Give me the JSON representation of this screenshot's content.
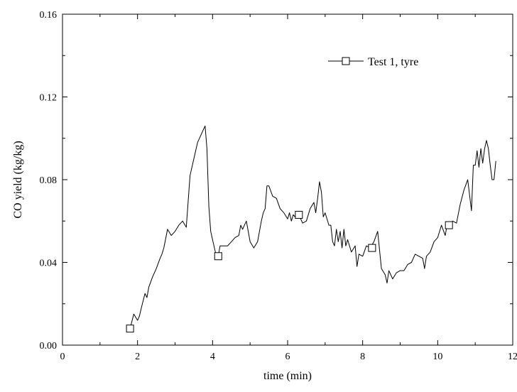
{
  "chart_data": {
    "type": "line",
    "title": "",
    "xlabel": "time (min)",
    "ylabel": "CO yield (kg/kg)",
    "xlim": [
      0,
      12
    ],
    "ylim": [
      0,
      0.16
    ],
    "xticks": [
      0,
      2,
      4,
      6,
      8,
      10,
      12
    ],
    "xtick_labels": [
      "0",
      "2",
      "4",
      "6",
      "8",
      "10",
      "12"
    ],
    "yticks": [
      0,
      0.04,
      0.08,
      0.12,
      0.16
    ],
    "ytick_labels": [
      "0.00",
      "0.04",
      "0.08",
      "0.12",
      "0.16"
    ],
    "grid": false,
    "legend_position": "top-right",
    "series": [
      {
        "name": "Test 1, tyre",
        "color": "#000000",
        "marker": "open-square",
        "x": [
          1.8,
          1.9,
          2.0,
          2.05,
          2.1,
          2.2,
          2.25,
          2.3,
          2.4,
          2.5,
          2.6,
          2.65,
          2.7,
          2.8,
          2.9,
          3.0,
          3.1,
          3.2,
          3.3,
          3.4,
          3.5,
          3.6,
          3.7,
          3.8,
          3.85,
          3.9,
          3.95,
          4.0,
          4.1,
          4.15,
          4.2,
          4.3,
          4.4,
          4.5,
          4.6,
          4.7,
          4.75,
          4.8,
          4.85,
          4.9,
          5.0,
          5.1,
          5.2,
          5.3,
          5.35,
          5.4,
          5.45,
          5.5,
          5.6,
          5.7,
          5.8,
          5.9,
          6.0,
          6.05,
          6.1,
          6.15,
          6.2,
          6.3,
          6.4,
          6.5,
          6.6,
          6.7,
          6.75,
          6.8,
          6.85,
          6.9,
          6.95,
          7.0,
          7.1,
          7.15,
          7.2,
          7.25,
          7.3,
          7.35,
          7.4,
          7.45,
          7.5,
          7.55,
          7.6,
          7.7,
          7.8,
          7.85,
          7.9,
          8.0,
          8.1,
          8.2,
          8.3,
          8.4,
          8.5,
          8.6,
          8.65,
          8.7,
          8.75,
          8.8,
          8.9,
          9.0,
          9.1,
          9.2,
          9.3,
          9.4,
          9.5,
          9.6,
          9.65,
          9.7,
          9.75,
          9.8,
          9.9,
          10.0,
          10.1,
          10.2,
          10.25,
          10.3,
          10.4,
          10.5,
          10.6,
          10.7,
          10.8,
          10.9,
          10.95,
          11.0,
          11.05,
          11.1,
          11.15,
          11.2,
          11.25,
          11.3,
          11.35,
          11.4,
          11.45,
          11.5,
          11.55
        ],
        "y": [
          0.008,
          0.015,
          0.012,
          0.014,
          0.018,
          0.025,
          0.023,
          0.028,
          0.033,
          0.037,
          0.042,
          0.044,
          0.047,
          0.056,
          0.053,
          0.055,
          0.058,
          0.06,
          0.057,
          0.082,
          0.09,
          0.098,
          0.102,
          0.106,
          0.095,
          0.067,
          0.055,
          0.051,
          0.043,
          0.043,
          0.048,
          0.048,
          0.048,
          0.05,
          0.052,
          0.053,
          0.058,
          0.056,
          0.058,
          0.06,
          0.05,
          0.047,
          0.05,
          0.06,
          0.064,
          0.066,
          0.077,
          0.077,
          0.072,
          0.071,
          0.066,
          0.064,
          0.061,
          0.064,
          0.06,
          0.063,
          0.062,
          0.063,
          0.059,
          0.06,
          0.066,
          0.069,
          0.064,
          0.071,
          0.079,
          0.074,
          0.062,
          0.064,
          0.058,
          0.058,
          0.05,
          0.048,
          0.056,
          0.05,
          0.055,
          0.047,
          0.056,
          0.048,
          0.051,
          0.045,
          0.048,
          0.038,
          0.044,
          0.043,
          0.048,
          0.047,
          0.05,
          0.055,
          0.037,
          0.034,
          0.03,
          0.036,
          0.034,
          0.032,
          0.035,
          0.036,
          0.036,
          0.039,
          0.04,
          0.044,
          0.043,
          0.042,
          0.037,
          0.043,
          0.044,
          0.045,
          0.05,
          0.052,
          0.058,
          0.053,
          0.058,
          0.058,
          0.06,
          0.059,
          0.068,
          0.075,
          0.08,
          0.065,
          0.087,
          0.087,
          0.094,
          0.086,
          0.095,
          0.088,
          0.095,
          0.099,
          0.095,
          0.087,
          0.08,
          0.08,
          0.089
        ],
        "marker_x": [
          1.8,
          4.15,
          6.3,
          8.25,
          10.3
        ],
        "marker_y": [
          0.008,
          0.043,
          0.063,
          0.047,
          0.058
        ]
      }
    ]
  }
}
